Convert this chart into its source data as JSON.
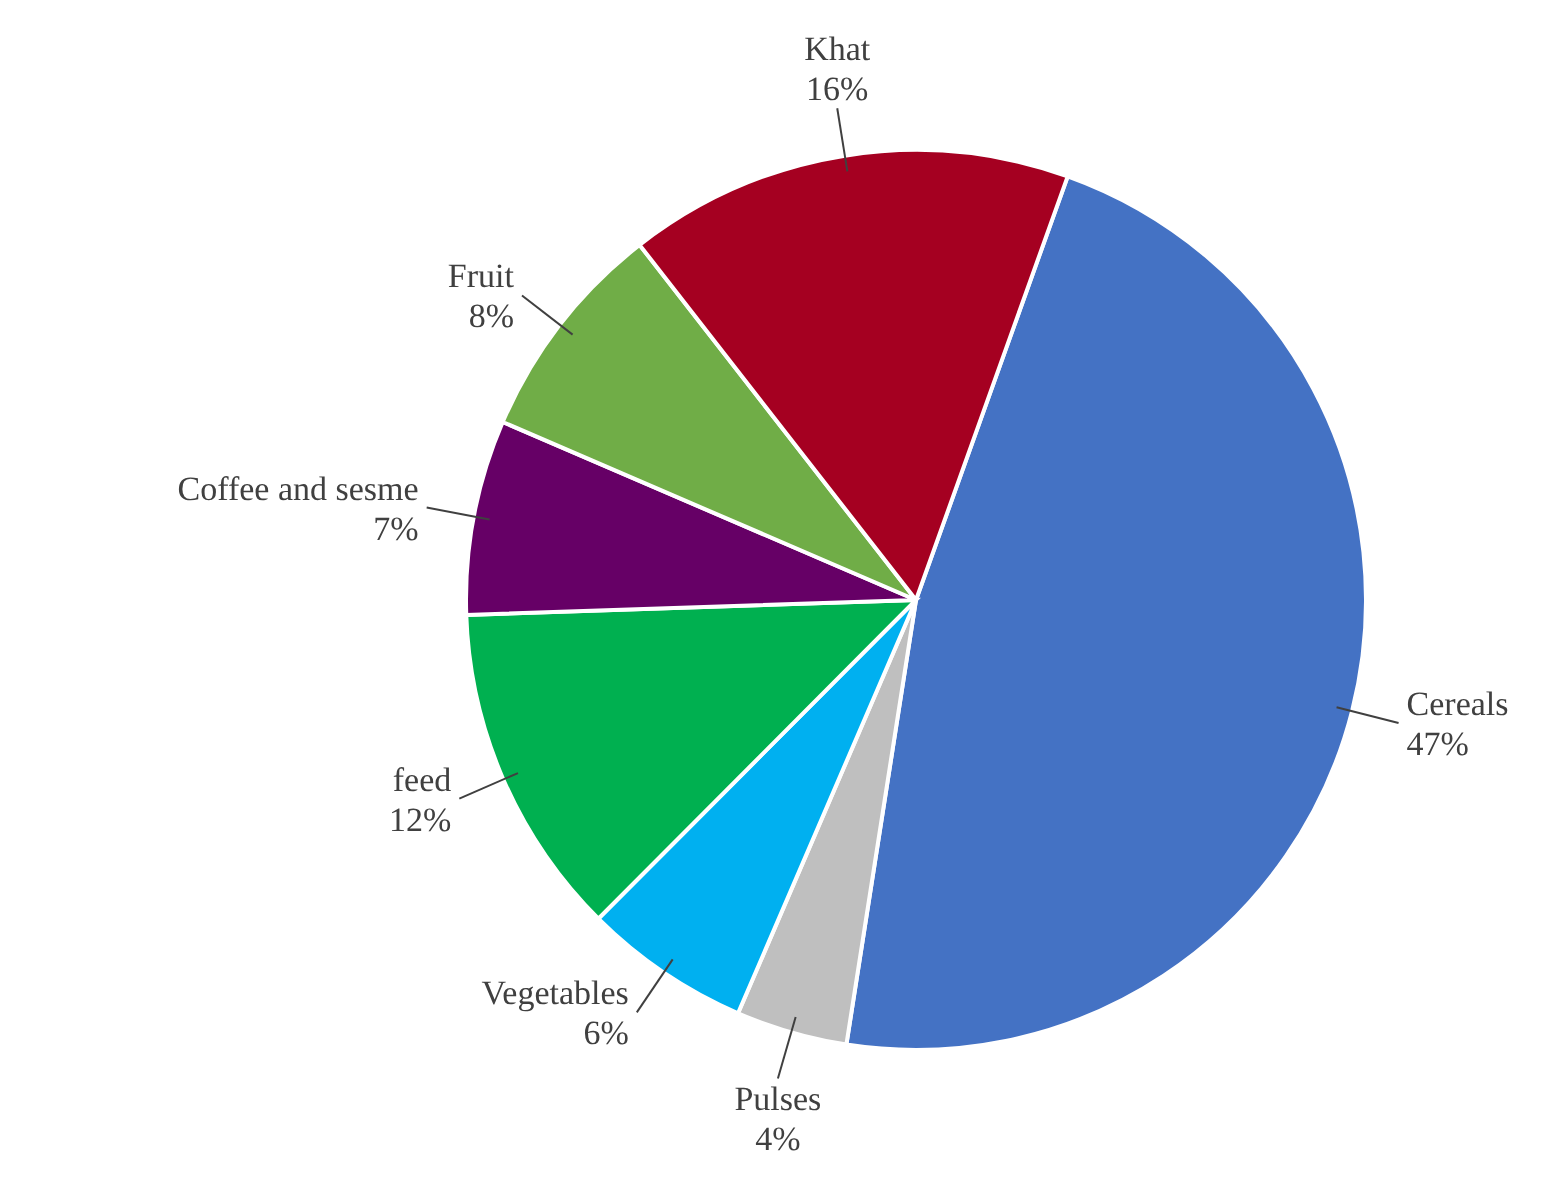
{
  "chart_data": {
    "type": "pie",
    "categories": [
      "Cereals",
      "Pulses",
      "Vegetables",
      "feed",
      "Coffee and sesme",
      "Fruit",
      "Khat"
    ],
    "values": [
      47,
      4,
      6,
      12,
      7,
      8,
      16
    ],
    "value_labels": [
      "47%",
      "4%",
      "6%",
      "12%",
      "7%",
      "8%",
      "16%"
    ],
    "colors": [
      "#4472c4",
      "#bfbfbf",
      "#00b0f0",
      "#00b050",
      "#660066",
      "#70ad47",
      "#a50021"
    ]
  }
}
